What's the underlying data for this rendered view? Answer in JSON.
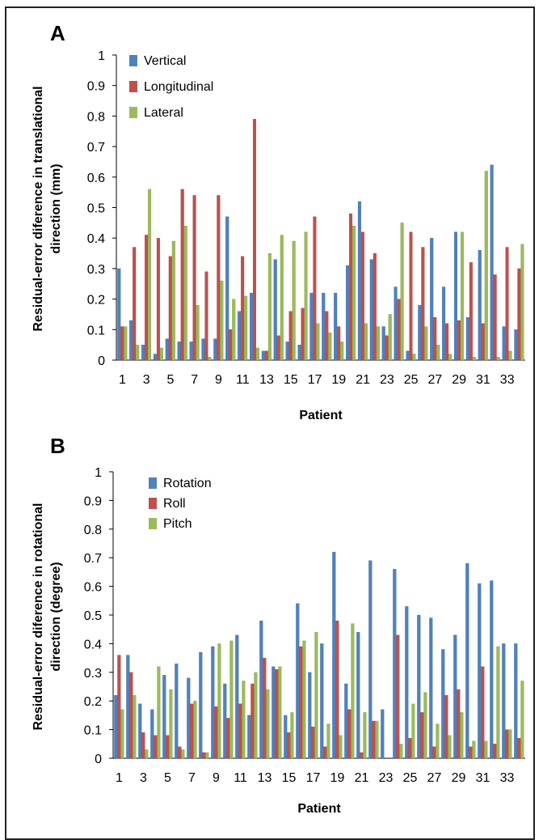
{
  "chart_data": [
    {
      "panel": "A",
      "type": "bar",
      "xlabel": "Patient",
      "ylabel": "Residual-error diference in translational direction (mm)",
      "ylim": [
        0,
        1
      ],
      "yticks": [
        "0",
        "0.1",
        "0.2",
        "0.3",
        "0.4",
        "0.5",
        "0.6",
        "0.7",
        "0.8",
        "0.9",
        "1"
      ],
      "categories": [
        "1",
        "2",
        "3",
        "4",
        "5",
        "6",
        "7",
        "8",
        "9",
        "10",
        "11",
        "12",
        "13",
        "14",
        "15",
        "16",
        "17",
        "18",
        "19",
        "20",
        "21",
        "22",
        "23",
        "24",
        "25",
        "26",
        "27",
        "28",
        "29",
        "30",
        "31",
        "32",
        "33",
        "34"
      ],
      "xtick_labels": [
        "1",
        "3",
        "5",
        "7",
        "9",
        "11",
        "13",
        "15",
        "17",
        "19",
        "21",
        "23",
        "25",
        "27",
        "29",
        "31",
        "33"
      ],
      "legend_position": "top-left",
      "grid": false,
      "series": [
        {
          "name": "Vertical",
          "color": "#4f81bd",
          "values": [
            0.3,
            0.13,
            0.05,
            0.02,
            0.07,
            0.06,
            0.06,
            0.07,
            0.07,
            0.47,
            0.16,
            0.22,
            0.03,
            0.33,
            0.06,
            0.05,
            0.22,
            0.22,
            0.22,
            0.31,
            0.52,
            0.33,
            0.11,
            0.24,
            0.03,
            0.18,
            0.4,
            0.24,
            0.42,
            0.14,
            0.36,
            0.64,
            0.11,
            0.1
          ]
        },
        {
          "name": "Longitudinal",
          "color": "#c0504d",
          "values": [
            0.11,
            0.37,
            0.41,
            0.4,
            0.34,
            0.56,
            0.54,
            0.29,
            0.54,
            0.1,
            0.34,
            0.79,
            0.03,
            0.08,
            0.16,
            0.17,
            0.47,
            0.16,
            0.11,
            0.48,
            0.42,
            0.35,
            0.08,
            0.2,
            0.42,
            0.37,
            0.14,
            0.12,
            0.13,
            0.32,
            0.12,
            0.28,
            0.37,
            0.3
          ]
        },
        {
          "name": "Lateral",
          "color": "#9bbb59",
          "values": [
            0.11,
            0.05,
            0.56,
            0.04,
            0.39,
            0.44,
            0.18,
            0.01,
            0.26,
            0.2,
            0.21,
            0.04,
            0.35,
            0.41,
            0.39,
            0.42,
            0.12,
            0.09,
            0.06,
            0.44,
            0.12,
            0.11,
            0.15,
            0.45,
            0.02,
            0.11,
            0.05,
            0.02,
            0.42,
            0.01,
            0.62,
            0.01,
            0.03,
            0.38
          ]
        }
      ]
    },
    {
      "panel": "B",
      "type": "bar",
      "xlabel": "Patient",
      "ylabel": "Residual-error diference in rotational direction (degree)",
      "ylim": [
        0,
        1
      ],
      "yticks": [
        "0",
        "0.1",
        "0.2",
        "0.3",
        "0.4",
        "0.5",
        "0.6",
        "0.7",
        "0.8",
        "0.9",
        "1"
      ],
      "categories": [
        "1",
        "2",
        "3",
        "4",
        "5",
        "6",
        "7",
        "8",
        "9",
        "10",
        "11",
        "12",
        "13",
        "14",
        "15",
        "16",
        "17",
        "18",
        "19",
        "20",
        "21",
        "22",
        "23",
        "24",
        "25",
        "26",
        "27",
        "28",
        "29",
        "30",
        "31",
        "32",
        "33",
        "34"
      ],
      "xtick_labels": [
        "1",
        "3",
        "5",
        "7",
        "9",
        "11",
        "13",
        "15",
        "17",
        "19",
        "21",
        "23",
        "25",
        "27",
        "29",
        "31",
        "33"
      ],
      "legend_position": "top-left",
      "grid": false,
      "series": [
        {
          "name": "Rotation",
          "color": "#4f81bd",
          "values": [
            0.22,
            0.36,
            0.19,
            0.17,
            0.29,
            0.33,
            0.28,
            0.37,
            0.39,
            0.26,
            0.43,
            0.15,
            0.48,
            0.32,
            0.15,
            0.54,
            0.3,
            0.4,
            0.72,
            0.26,
            0.44,
            0.69,
            0.17,
            0.66,
            0.53,
            0.5,
            0.49,
            0.38,
            0.43,
            0.68,
            0.61,
            0.62,
            0.4,
            0.4
          ]
        },
        {
          "name": "Roll",
          "color": "#c0504d",
          "values": [
            0.36,
            0.3,
            0.09,
            0.08,
            0.08,
            0.04,
            0.19,
            0.02,
            0.18,
            0.14,
            0.19,
            0.26,
            0.35,
            0.31,
            0.09,
            0.39,
            0.11,
            0.04,
            0.48,
            0.17,
            0.02,
            0.13,
            0.0,
            0.43,
            0.07,
            0.16,
            0.04,
            0.22,
            0.24,
            0.04,
            0.32,
            0.05,
            0.1,
            0.07
          ]
        },
        {
          "name": "Pitch",
          "color": "#9bbb59",
          "values": [
            0.17,
            0.22,
            0.03,
            0.32,
            0.24,
            0.03,
            0.2,
            0.02,
            0.4,
            0.41,
            0.27,
            0.3,
            0.24,
            0.32,
            0.16,
            0.41,
            0.44,
            0.12,
            0.08,
            0.47,
            0.16,
            0.13,
            0.0,
            0.05,
            0.19,
            0.23,
            0.12,
            0.08,
            0.16,
            0.06,
            0.06,
            0.39,
            0.1,
            0.27
          ]
        }
      ]
    }
  ]
}
